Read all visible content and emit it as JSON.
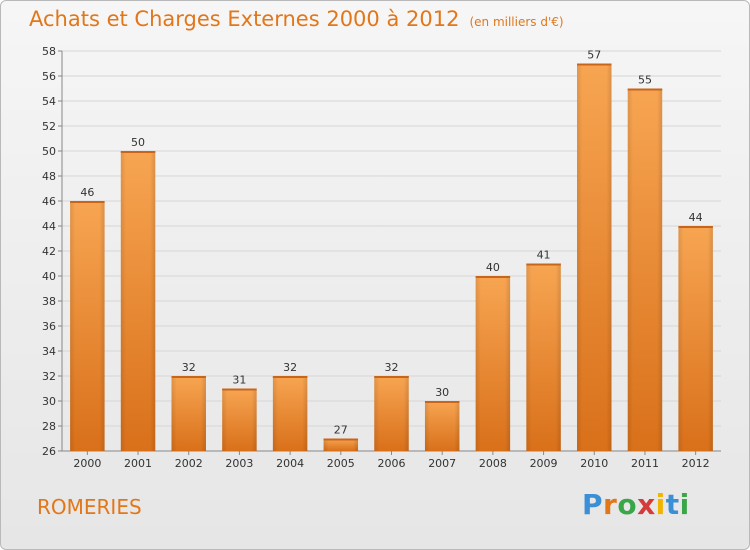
{
  "title": "Achats et Charges Externes 2000 à 2012",
  "subtitle": "(en milliers d'€)",
  "town": "ROMERIES",
  "logo": "Proxiti",
  "colors": {
    "bar": "#f0943a",
    "title": "#e2771a"
  },
  "chart_data": {
    "type": "bar",
    "categories": [
      "2000",
      "2001",
      "2002",
      "2003",
      "2004",
      "2005",
      "2006",
      "2007",
      "2008",
      "2009",
      "2010",
      "2011",
      "2012"
    ],
    "values": [
      46,
      50,
      32,
      31,
      32,
      27,
      32,
      30,
      40,
      41,
      57,
      55,
      44
    ],
    "title": "Achats et Charges Externes 2000 à 2012",
    "ylim": [
      26,
      58
    ],
    "yticks": [
      26,
      28,
      30,
      32,
      34,
      36,
      38,
      40,
      42,
      44,
      46,
      48,
      50,
      52,
      54,
      56,
      58
    ],
    "grid": true,
    "data_labels": true
  }
}
